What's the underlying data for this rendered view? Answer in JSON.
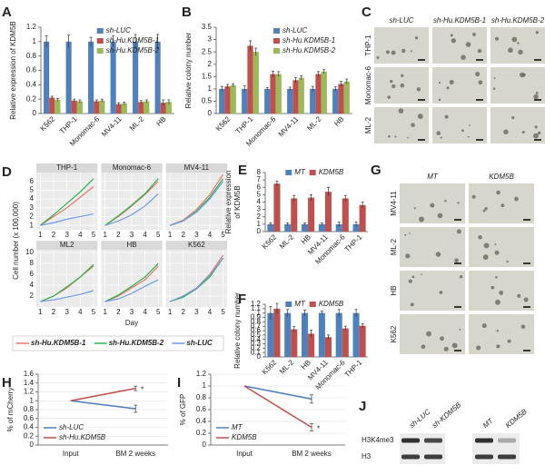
{
  "panel_labels": [
    "A",
    "B",
    "C",
    "D",
    "E",
    "F",
    "G",
    "H",
    "I",
    "J"
  ],
  "chart_data": [
    {
      "type": "bar",
      "ylabel": "Relative expression of KDM5B",
      "categories": [
        "K562",
        "THP-1",
        "Monomac-6",
        "MV4-11",
        "ML-2",
        "HB"
      ],
      "ylim": [
        0,
        1.2
      ],
      "yticks": [
        0,
        0.2,
        0.4,
        0.6,
        0.8,
        1,
        1.2
      ],
      "legend": "upper right",
      "series": [
        {
          "name": "sh-LUC",
          "color": "#4f81bd",
          "values": [
            1,
            1,
            1,
            1,
            1,
            1
          ],
          "errors": [
            0.08,
            0.09,
            0.06,
            0.08,
            0.1,
            0.1
          ]
        },
        {
          "name": "sh-Hu.KDM5B-1",
          "color": "#c0504d",
          "values": [
            0.22,
            0.18,
            0.17,
            0.13,
            0.16,
            0.15
          ],
          "errors": [
            0.02,
            0.02,
            0.02,
            0.02,
            0.02,
            0.04
          ]
        },
        {
          "name": "sh-Hu.KDM5B-2",
          "color": "#9bbb59",
          "values": [
            0.19,
            0.17,
            0.18,
            0.14,
            0.17,
            0.16
          ],
          "errors": [
            0.02,
            0.02,
            0.02,
            0.02,
            0.02,
            0.03
          ]
        }
      ]
    },
    {
      "type": "bar",
      "ylabel": "Relative colony number",
      "categories": [
        "K562",
        "THP-1",
        "Monomac-6",
        "MV4-11",
        "ML-2",
        "HB"
      ],
      "ylim": [
        0,
        3.5
      ],
      "yticks": [
        0,
        0.5,
        1,
        1.5,
        2,
        2.5,
        3,
        3.5
      ],
      "legend": "upper right",
      "series": [
        {
          "name": "sh-LUC",
          "color": "#4f81bd",
          "values": [
            1,
            1,
            1,
            1,
            1,
            1
          ],
          "errors": [
            0.1,
            0.12,
            0.05,
            0.07,
            0.1,
            0.08
          ]
        },
        {
          "name": "sh-Hu.KDM5B-1",
          "color": "#c0504d",
          "values": [
            1.1,
            2.75,
            1.6,
            1.35,
            1.6,
            1.2
          ],
          "errors": [
            0.08,
            0.2,
            0.12,
            0.1,
            0.1,
            0.1
          ]
        },
        {
          "name": "sh-Hu.KDM5B-2",
          "color": "#9bbb59",
          "values": [
            1.15,
            2.5,
            1.6,
            1.45,
            1.7,
            1.3
          ],
          "errors": [
            0.06,
            0.15,
            0.1,
            0.08,
            0.08,
            0.1
          ]
        }
      ]
    },
    {
      "type": "facet-line",
      "xlabel": "Day",
      "ylabel": "Cell number (x 100,000)",
      "x": [
        1,
        2,
        3,
        4,
        5
      ],
      "xlim": [
        0.7,
        5.3
      ],
      "xticks": [
        1,
        2,
        3,
        4,
        5
      ],
      "series": [
        {
          "name": "sh-Hu.KDM5B-1",
          "color": "#e8786f"
        },
        {
          "name": "sh-Hu.KDM5B-2",
          "color": "#2db34a"
        },
        {
          "name": "sh-LUC",
          "color": "#6e9be8"
        }
      ],
      "rows": [
        {
          "ylim": [
            0.5,
            7
          ],
          "yticks": [
            1,
            2,
            3,
            4,
            5,
            6
          ],
          "panels": [
            {
              "title": "THP-1",
              "values": [
                [
                  1,
                  2,
                  3,
                  4.2,
                  5.4
                ],
                [
                  1,
                  2.2,
                  3.5,
                  4.8,
                  6.3
                ],
                [
                  1,
                  1.3,
                  1.7,
                  2,
                  2.3
                ]
              ]
            },
            {
              "title": "Monomac-6",
              "values": [
                [
                  1,
                  2,
                  3.2,
                  4.5,
                  6
                ],
                [
                  1,
                  2.1,
                  3.3,
                  4.6,
                  6.3
                ],
                [
                  1,
                  1.5,
                  2.2,
                  3.2,
                  4.6
                ]
              ]
            },
            {
              "title": "MV4-11",
              "values": [
                [
                  1,
                  1.6,
                  2.8,
                  4.5,
                  6.8
                ],
                [
                  1,
                  1.5,
                  2.6,
                  4.2,
                  6.3
                ],
                [
                  1,
                  1.5,
                  2.5,
                  4,
                  6
                ]
              ]
            }
          ]
        },
        {
          "ylim": [
            0,
            10.5
          ],
          "yticks": [
            2,
            4,
            6,
            8,
            10
          ],
          "panels": [
            {
              "title": "ML2",
              "values": [
                [
                  1,
                  2,
                  3.5,
                  5.5,
                  7.5
                ],
                [
                  1,
                  2,
                  3.7,
                  5.5,
                  7.8
                ],
                [
                  1,
                  1.3,
                  1.8,
                  2.3,
                  3
                ]
              ]
            },
            {
              "title": "HB",
              "values": [
                [
                  1,
                  2,
                  3.5,
                  5,
                  7.5
                ],
                [
                  1,
                  2.2,
                  3.8,
                  5.5,
                  8
                ],
                [
                  1,
                  1.5,
                  2.5,
                  3.8,
                  5
                ]
              ]
            },
            {
              "title": "K562",
              "values": [
                [
                  1,
                  2,
                  3.5,
                  6,
                  9.5
                ],
                [
                  1,
                  1.8,
                  3.3,
                  5.5,
                  9
                ],
                [
                  1,
                  2,
                  3.4,
                  5.8,
                  9
                ]
              ]
            }
          ]
        }
      ]
    },
    {
      "type": "bar",
      "ylabel": [
        "Relative expression",
        "of KDM5B"
      ],
      "categories": [
        "K562",
        "ML-2",
        "HB",
        "MV4-11",
        "Monomac-6",
        "THP-1"
      ],
      "ylim": [
        0,
        8
      ],
      "yticks": [
        0,
        1,
        2,
        3,
        4,
        5,
        6,
        7,
        8
      ],
      "legend": "upper center",
      "series": [
        {
          "name": "MT",
          "color": "#4f81bd",
          "values": [
            1,
            1,
            1,
            1,
            1,
            1
          ],
          "errors": [
            0.2,
            0.2,
            0.15,
            0.15,
            0.3,
            0.3
          ]
        },
        {
          "name": "KDM5B",
          "color": "#c0504d",
          "values": [
            6.5,
            4.5,
            4.6,
            5.4,
            4.5,
            3.6
          ],
          "errors": [
            0.35,
            0.4,
            0.4,
            0.6,
            0.4,
            0.4
          ]
        }
      ]
    },
    {
      "type": "bar",
      "ylabel": "Relative colony number",
      "categories": [
        "K562",
        "ML-2",
        "HB",
        "MV4-11",
        "Monomac-6",
        "THP-1"
      ],
      "ylim": [
        0,
        1.2
      ],
      "yticks": [
        0,
        0.1,
        0.2,
        0.3,
        0.4,
        0.5,
        0.6,
        0.7,
        0.8,
        0.9,
        1,
        1.1,
        1.2
      ],
      "legend": "upper center",
      "series": [
        {
          "name": "MT",
          "color": "#4f81bd",
          "values": [
            1,
            1,
            1,
            1,
            1,
            1
          ],
          "errors": [
            0.15,
            0.08,
            0.07,
            0.04,
            0.08,
            0.08
          ]
        },
        {
          "name": "KDM5B",
          "color": "#c0504d",
          "values": [
            1.1,
            0.63,
            0.53,
            0.45,
            0.65,
            0.71
          ],
          "errors": [
            0.12,
            0.06,
            0.08,
            0.05,
            0.05,
            0.05
          ]
        }
      ]
    },
    {
      "type": "line",
      "ylabel": "% of mCherry",
      "categories": [
        "Input",
        "BM 2 weeks"
      ],
      "ylim": [
        0,
        1.6
      ],
      "yticks": [
        0,
        0.2,
        0.4,
        0.6,
        0.8,
        1,
        1.2,
        1.4,
        1.6
      ],
      "grid": true,
      "legend": "lower left",
      "annotation": "*",
      "series": [
        {
          "name": "sh-LUC",
          "color": "#4f81bd",
          "values": [
            1,
            0.82
          ],
          "errors": [
            null,
            0.08
          ]
        },
        {
          "name": "sh-Hu.KDM5B",
          "color": "#c0504d",
          "values": [
            1,
            1.28
          ],
          "errors": [
            null,
            0.05
          ]
        }
      ]
    },
    {
      "type": "line",
      "ylabel": "% of GFP",
      "categories": [
        "Input",
        "BM 2 weeks"
      ],
      "ylim": [
        0,
        1.2
      ],
      "yticks": [
        0,
        0.2,
        0.4,
        0.6,
        0.8,
        1,
        1.2
      ],
      "grid": true,
      "legend": "lower left",
      "annotation": "*",
      "series": [
        {
          "name": "MT",
          "color": "#4f81bd",
          "values": [
            1,
            0.78
          ],
          "errors": [
            null,
            0.07
          ]
        },
        {
          "name": "KDM5B",
          "color": "#c0504d",
          "values": [
            1,
            0.3
          ],
          "errors": [
            null,
            0.06
          ]
        }
      ]
    }
  ],
  "image_grid_c": {
    "columns": [
      "sh-LUC",
      "sh-Hu.KDM5B-1",
      "sh-Hu.KDM5B-2"
    ],
    "rows": [
      "THP-1",
      "Monomac-6",
      "ML-2"
    ]
  },
  "image_grid_g": {
    "columns": [
      "MT",
      "KDM5B"
    ],
    "rows": [
      "MV4-11",
      "ML-2",
      "HB",
      "K562"
    ]
  },
  "blot_j": {
    "lanes": [
      "sh-LUC",
      "sh-KDM5B",
      "MT",
      "KDM5B"
    ],
    "rows": [
      "H3K4me3",
      "H3"
    ]
  }
}
